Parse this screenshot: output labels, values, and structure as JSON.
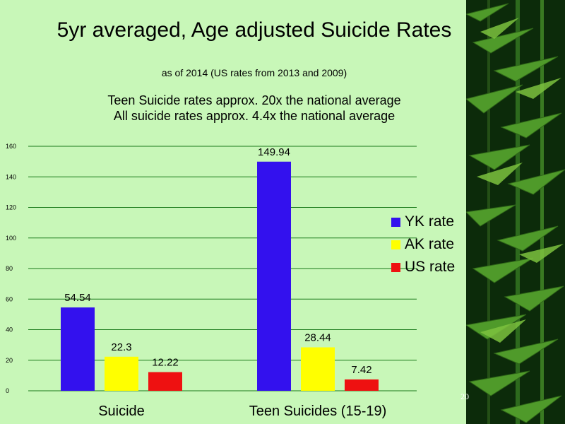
{
  "slide": {
    "title": "5yr averaged, Age adjusted Suicide Rates",
    "subtitle": "as of 2014 (US rates from 2013 and 2009)",
    "note_line1": "Teen Suicide rates approx. 20x the national average",
    "note_line2": "All suicide rates approx. 4.4x the national average",
    "slide_number": "20"
  },
  "chart_data": {
    "type": "bar",
    "title": "",
    "xlabel": "",
    "ylabel": "",
    "categories": [
      "Suicide",
      "Teen Suicides (15-19)"
    ],
    "series": [
      {
        "name": "YK rate",
        "values": [
          54.54,
          149.94
        ],
        "color": "#3311ee"
      },
      {
        "name": "AK rate",
        "values": [
          22.3,
          28.44
        ],
        "color": "#ffff00"
      },
      {
        "name": "US rate",
        "values": [
          12.22,
          7.42
        ],
        "color": "#ee1111"
      }
    ],
    "data_labels": [
      [
        "54.54",
        "149.94"
      ],
      [
        "22.3",
        "28.44"
      ],
      [
        "12.22",
        "7.42"
      ]
    ],
    "ylim": [
      0,
      160
    ],
    "yticks": [
      0,
      20,
      40,
      60,
      80,
      100,
      120,
      140,
      160
    ],
    "grid": true,
    "legend_position": "right"
  }
}
